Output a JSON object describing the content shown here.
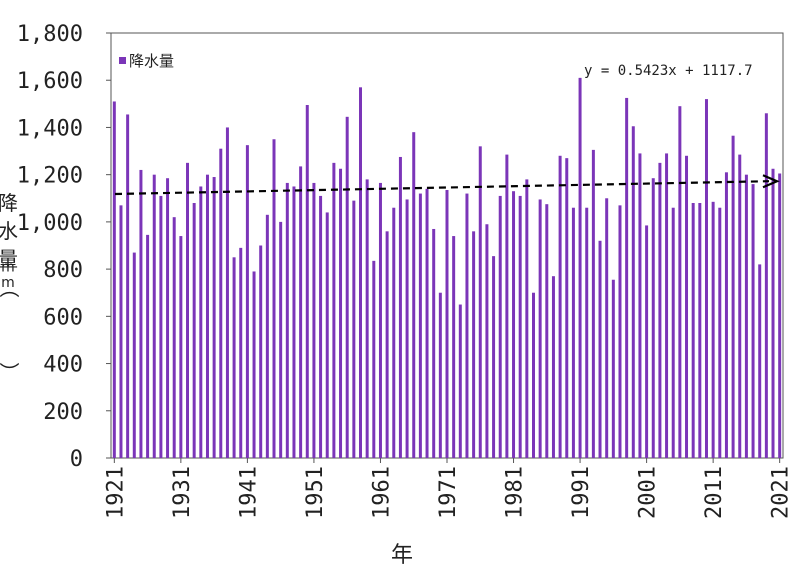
{
  "chart_data": {
    "type": "bar",
    "x_start": 1921,
    "x_end": 2021,
    "values": [
      1510,
      1070,
      1455,
      870,
      1220,
      945,
      1200,
      1110,
      1185,
      1020,
      940,
      1250,
      1080,
      1150,
      1200,
      1190,
      1310,
      1400,
      850,
      890,
      1325,
      790,
      900,
      1030,
      1350,
      1000,
      1165,
      1150,
      1235,
      1495,
      1165,
      1110,
      1040,
      1250,
      1225,
      1445,
      1090,
      1570,
      1180,
      835,
      1165,
      960,
      1060,
      1275,
      1095,
      1380,
      1120,
      1140,
      970,
      700,
      1135,
      940,
      650,
      1120,
      960,
      1320,
      990,
      855,
      1110,
      1285,
      1130,
      1110,
      1180,
      700,
      1095,
      1075,
      770,
      1280,
      1270,
      1060,
      1610,
      1060,
      1305,
      920,
      1100,
      755,
      1070,
      1525,
      1405,
      1290,
      985,
      1185,
      1250,
      1290,
      1060,
      1490,
      1280,
      1080,
      1080,
      1520,
      1085,
      1060,
      1210,
      1365,
      1285,
      1200,
      1160,
      820,
      1460,
      1225,
      1205
    ],
    "ylim": [
      0,
      1800
    ],
    "yticks": [
      "0",
      "200",
      "400",
      "600",
      "800",
      "1,000",
      "1,200",
      "1,400",
      "1,600",
      "1,800"
    ],
    "xticks": [
      "1921",
      "1931",
      "1941",
      "1951",
      "1961",
      "1971",
      "1981",
      "1991",
      "2001",
      "2011",
      "2021"
    ],
    "xlabel": "年",
    "ylabel": "降水量（mm）",
    "legend": {
      "label": "降水量",
      "position": "top-left"
    },
    "trendline": {
      "slope": 0.5423,
      "intercept": 1117.7,
      "equation": "y = 0.5423x + 1117.7",
      "style": "dashed-arrow"
    },
    "colors": {
      "bar": "#7b35b8",
      "bar_edge": "#5a2290",
      "trend": "#000000"
    },
    "grid": false
  }
}
